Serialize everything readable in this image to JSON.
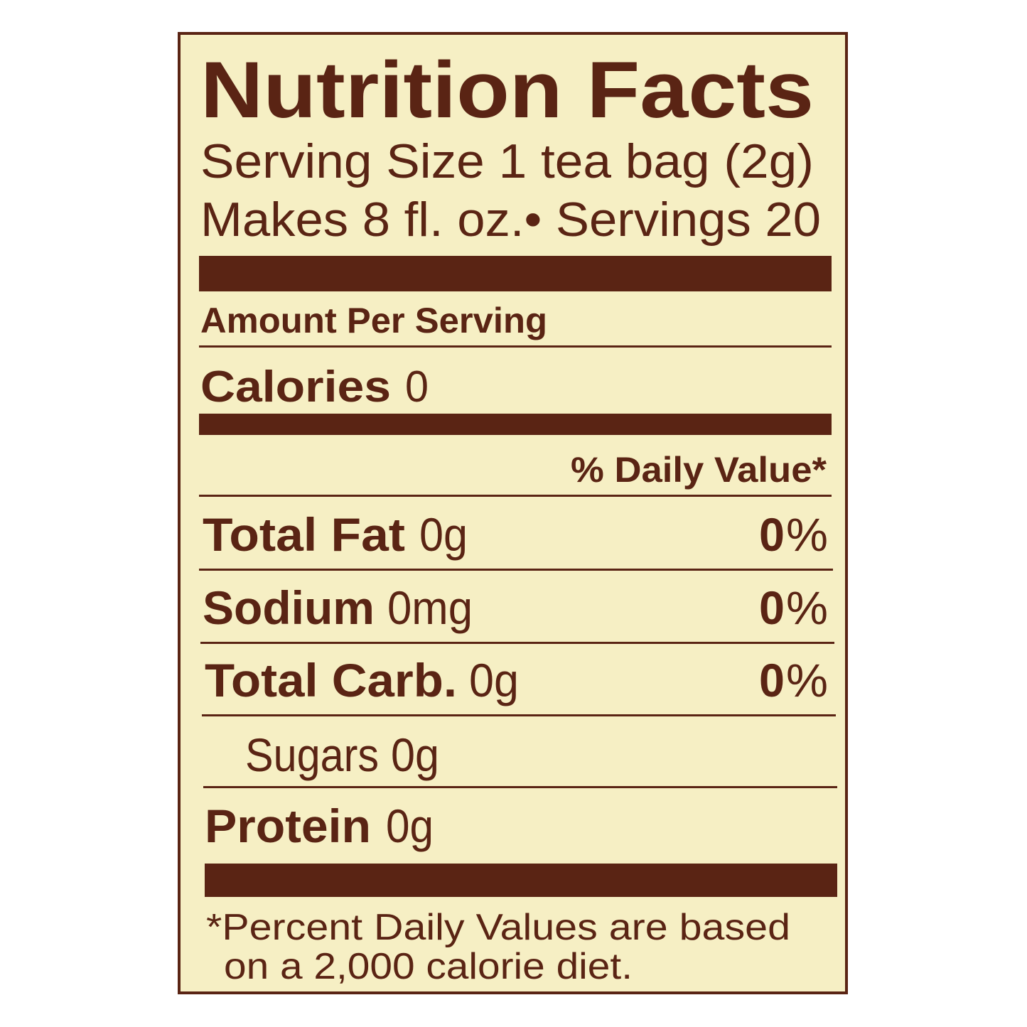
{
  "colors": {
    "background": "#f6efc4",
    "ink": "#5a2414"
  },
  "title": "Nutrition Facts",
  "serving_size": "Serving Size 1 tea bag (2g)",
  "makes": "Makes 8 fl. oz.• Servings 20",
  "amount_per_serving": "Amount Per Serving",
  "calories": {
    "label": "Calories",
    "value": "0"
  },
  "daily_value_header": "% Daily Value*",
  "nutrients": [
    {
      "label": "Total Fat",
      "amount": "0g",
      "dv_number": "0",
      "dv_unit": "%"
    },
    {
      "label": "Sodium",
      "amount": "0mg",
      "dv_number": "0",
      "dv_unit": "%"
    },
    {
      "label": "Total Carb.",
      "amount": "0g",
      "dv_number": "0",
      "dv_unit": "%"
    },
    {
      "label": "Sugars",
      "amount": "0g"
    },
    {
      "label": "Protein",
      "amount": "0g"
    }
  ],
  "footnote": {
    "line1": "*Percent Daily Values are based",
    "line2": "on a 2,000 calorie diet."
  }
}
